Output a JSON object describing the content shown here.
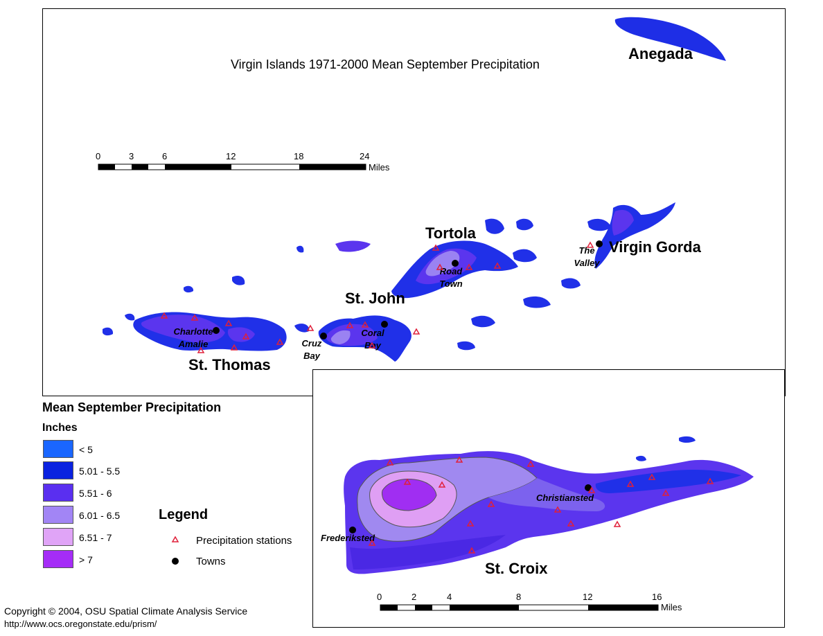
{
  "map": {
    "title": "Virgin Islands 1971-2000 Mean September Precipitation",
    "islands": {
      "anegada": "Anegada",
      "tortola": "Tortola",
      "virgin_gorda": "Virgin Gorda",
      "st_john": "St. John",
      "st_thomas": "St. Thomas",
      "st_croix": "St. Croix"
    },
    "towns": {
      "the_valley_1": "The",
      "the_valley_2": "Valley",
      "road_town_1": "Road",
      "road_town_2": "Town",
      "charlotte_1": "Charlotte",
      "charlotte_2": "Amalie",
      "cruz_1": "Cruz",
      "cruz_2": "Bay",
      "coral_1": "Coral",
      "coral_2": "Bay",
      "christiansted": "Christiansted",
      "frederiksted": "Frederiksted"
    },
    "scale_main": {
      "ticks": [
        "0",
        "3",
        "6",
        "12",
        "18",
        "24"
      ],
      "unit": "Miles"
    },
    "scale_inset": {
      "ticks": [
        "0",
        "2",
        "4",
        "8",
        "12",
        "16"
      ],
      "unit": "Miles"
    }
  },
  "legend": {
    "title": "Mean September Precipitation",
    "units": "Inches",
    "classes": [
      {
        "label": "< 5",
        "color": "#1a66ff"
      },
      {
        "label": "5.01 - 5.5",
        "color": "#0a22e0"
      },
      {
        "label": "5.51 - 6",
        "color": "#5a2ff0"
      },
      {
        "label": "6.01 - 6.5",
        "color": "#a285f5"
      },
      {
        "label": "6.51 - 7",
        "color": "#e0a4f7"
      },
      {
        "label": "> 7",
        "color": "#a52cf7"
      }
    ],
    "symbols_title": "Legend",
    "symbols": {
      "stations": "Precipitation stations",
      "towns": "Towns"
    }
  },
  "footer": {
    "copyright": "Copyright © 2004, OSU Spatial Climate Analysis Service",
    "url": "http://www.ocs.oregonstate.edu/prism/"
  }
}
